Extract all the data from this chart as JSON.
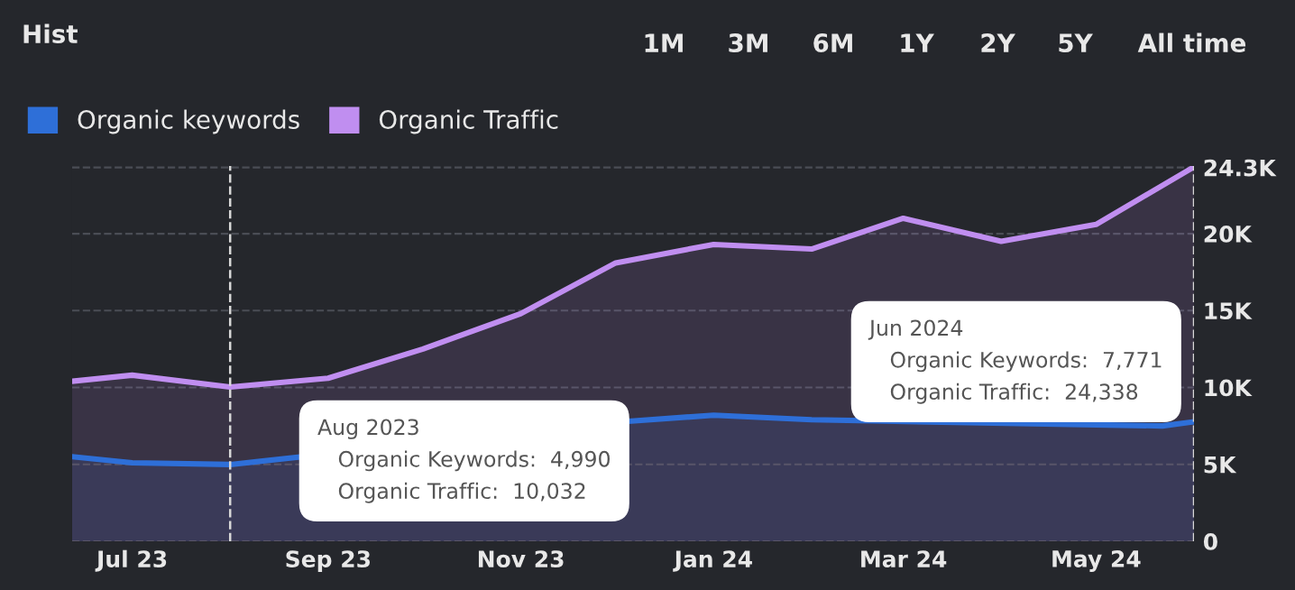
{
  "chart_data": {
    "type": "area",
    "title": "Hist",
    "annotations": [
      "1M",
      "3M",
      "6M",
      "1Y",
      "2Y",
      "5Y",
      "All time",
      "Aug 2023\nOrganic Keywords:  4,990\nOrganic Traffic:  10,032",
      "Jun 2024\nOrganic Keywords:  7,771\nOrganic Traffic:  24,338"
    ],
    "x": [
      "2023-06-12",
      "2023-07",
      "2023-08",
      "2023-09",
      "2023-10",
      "2023-11",
      "2023-12",
      "2024-01",
      "2024-02",
      "2024-03",
      "2024-04",
      "2024-05",
      "2024-06"
    ],
    "series": [
      {
        "name": "Organic keywords",
        "color": "#2e6fd8",
        "x": [
          "2023-06-12",
          "2023-07",
          "2023-08",
          "2023-12-05",
          "2024-01",
          "2024-02",
          "2024-05-22",
          "2024-06"
        ],
        "values": [
          5500,
          5100,
          4990,
          7800,
          8200,
          7900,
          7500,
          7771
        ]
      },
      {
        "name": "Organic Traffic",
        "color": "#c08ef0",
        "values": [
          10400,
          10800,
          10032,
          10600,
          12500,
          14800,
          18100,
          19300,
          19000,
          21000,
          19500,
          20600,
          24338
        ]
      }
    ],
    "xlim": [
      "2023-06-12",
      "2024-06"
    ],
    "xticks": [
      {
        "value": "2023-07",
        "label": "Jul 23"
      },
      {
        "value": "2023-09",
        "label": "Sep 23"
      },
      {
        "value": "2023-11",
        "label": "Nov 23"
      },
      {
        "value": "2024-01",
        "label": "Jan 24"
      },
      {
        "value": "2024-03",
        "label": "Mar 24"
      },
      {
        "value": "2024-05",
        "label": "May 24"
      }
    ],
    "ylim": [
      0,
      24400
    ],
    "yticks": [
      0,
      {
        "value": 5000,
        "label": "5K"
      },
      {
        "value": 10000,
        "label": "10K"
      },
      {
        "value": 15000,
        "label": "15K"
      },
      {
        "value": 20000,
        "label": "20K"
      },
      {
        "value": 24300,
        "label": "24.3K"
      }
    ],
    "ref_lines": [
      {
        "axis": "x",
        "value": "2023-08",
        "color": "#d8d8d8",
        "line_style": "dashed"
      },
      {
        "axis": "x",
        "value": "2024-06",
        "color": "#d8d8d8",
        "line_style": "dashed"
      }
    ],
    "grid": "y",
    "legend": "top left",
    "marker": "none",
    "line_style": "solid"
  }
}
